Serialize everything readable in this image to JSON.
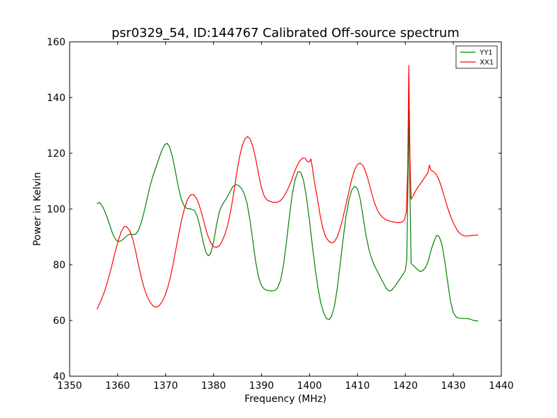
{
  "chart_data": {
    "type": "line",
    "title": "psr0329_54, ID:144767 Calibrated Off-source spectrum",
    "xlabel": "Frequency (MHz)",
    "ylabel": "Power in Kelvin",
    "xlim": [
      1350,
      1440
    ],
    "ylim": [
      40,
      160
    ],
    "x_ticks": [
      1350,
      1360,
      1370,
      1380,
      1390,
      1400,
      1410,
      1420,
      1430,
      1440
    ],
    "y_ticks": [
      40,
      60,
      80,
      100,
      120,
      140,
      160
    ],
    "grid": false,
    "legend_position": "top-right",
    "series": [
      {
        "name": "YY1",
        "color": "#008000",
        "points": [
          [
            1355.7,
            102
          ],
          [
            1356.3,
            102.3
          ],
          [
            1357,
            100.5
          ],
          [
            1357.7,
            97.5
          ],
          [
            1358.4,
            94
          ],
          [
            1359,
            91
          ],
          [
            1359.6,
            89
          ],
          [
            1360.2,
            88.3
          ],
          [
            1360.8,
            88.6
          ],
          [
            1361.4,
            89.5
          ],
          [
            1362,
            90.5
          ],
          [
            1362.6,
            91
          ],
          [
            1363.2,
            90.8
          ],
          [
            1363.8,
            91
          ],
          [
            1364.4,
            92.5
          ],
          [
            1365,
            95.5
          ],
          [
            1365.6,
            99.5
          ],
          [
            1366.2,
            104
          ],
          [
            1366.8,
            108.5
          ],
          [
            1367.4,
            112
          ],
          [
            1368,
            115
          ],
          [
            1368.6,
            118
          ],
          [
            1369.2,
            121
          ],
          [
            1369.8,
            123
          ],
          [
            1370.3,
            123.6
          ],
          [
            1370.8,
            122.5
          ],
          [
            1371.4,
            119
          ],
          [
            1372,
            114
          ],
          [
            1372.6,
            108.5
          ],
          [
            1373.2,
            104
          ],
          [
            1373.8,
            101.3
          ],
          [
            1374.4,
            100.2
          ],
          [
            1375.3,
            100
          ],
          [
            1376,
            99.5
          ],
          [
            1376.6,
            97.5
          ],
          [
            1377.2,
            93.5
          ],
          [
            1377.8,
            88.5
          ],
          [
            1378.4,
            84.5
          ],
          [
            1378.9,
            83.2
          ],
          [
            1379.4,
            84
          ],
          [
            1380,
            88
          ],
          [
            1380.6,
            94
          ],
          [
            1381.2,
            99
          ],
          [
            1381.8,
            101.5
          ],
          [
            1382.6,
            103.5
          ],
          [
            1383.4,
            106
          ],
          [
            1384,
            108
          ],
          [
            1384.6,
            108.7
          ],
          [
            1385.2,
            108.5
          ],
          [
            1385.8,
            107.5
          ],
          [
            1386.4,
            105.5
          ],
          [
            1387,
            102
          ],
          [
            1387.6,
            96
          ],
          [
            1388.2,
            88.5
          ],
          [
            1388.8,
            81
          ],
          [
            1389.4,
            75.5
          ],
          [
            1390,
            72.5
          ],
          [
            1390.6,
            71.2
          ],
          [
            1391.3,
            70.8
          ],
          [
            1392,
            70.6
          ],
          [
            1392.7,
            70.7
          ],
          [
            1393.3,
            71.5
          ],
          [
            1394,
            74.5
          ],
          [
            1394.6,
            80
          ],
          [
            1395.2,
            88
          ],
          [
            1395.8,
            97
          ],
          [
            1396.4,
            105
          ],
          [
            1397,
            110.5
          ],
          [
            1397.6,
            113.4
          ],
          [
            1398.2,
            113.2
          ],
          [
            1398.8,
            110
          ],
          [
            1399.4,
            104
          ],
          [
            1400,
            96
          ],
          [
            1400.6,
            87
          ],
          [
            1401.2,
            78.5
          ],
          [
            1401.8,
            71.5
          ],
          [
            1402.4,
            66
          ],
          [
            1403,
            62.5
          ],
          [
            1403.6,
            60.6
          ],
          [
            1404.1,
            60.3
          ],
          [
            1404.6,
            61.5
          ],
          [
            1405.2,
            65
          ],
          [
            1405.8,
            71.5
          ],
          [
            1406.4,
            80
          ],
          [
            1407,
            89
          ],
          [
            1407.6,
            97
          ],
          [
            1408.2,
            103
          ],
          [
            1408.8,
            106.7
          ],
          [
            1409.4,
            108.2
          ],
          [
            1410,
            107.3
          ],
          [
            1410.6,
            103.5
          ],
          [
            1411.2,
            97
          ],
          [
            1411.8,
            90.5
          ],
          [
            1412.4,
            85.5
          ],
          [
            1413,
            82
          ],
          [
            1413.6,
            79.5
          ],
          [
            1414.2,
            77.5
          ],
          [
            1414.8,
            75.5
          ],
          [
            1415.4,
            73.5
          ],
          [
            1416,
            71.5
          ],
          [
            1416.6,
            70.6
          ],
          [
            1417.1,
            70.8
          ],
          [
            1417.7,
            72
          ],
          [
            1418.3,
            73.5
          ],
          [
            1418.9,
            75
          ],
          [
            1419.5,
            76.5
          ],
          [
            1420,
            78
          ],
          [
            1420.3,
            82
          ],
          [
            1420.55,
            110
          ],
          [
            1420.75,
            135.5
          ],
          [
            1420.95,
            106
          ],
          [
            1421.2,
            80.5
          ],
          [
            1421.8,
            79.5
          ],
          [
            1422.4,
            78.5
          ],
          [
            1423,
            77.6
          ],
          [
            1423.6,
            77.8
          ],
          [
            1424.2,
            79
          ],
          [
            1424.8,
            81.5
          ],
          [
            1425.4,
            85.5
          ],
          [
            1426,
            88.5
          ],
          [
            1426.5,
            90.5
          ],
          [
            1427,
            90.3
          ],
          [
            1427.6,
            87.5
          ],
          [
            1428.2,
            81.5
          ],
          [
            1428.8,
            74
          ],
          [
            1429.4,
            67
          ],
          [
            1430,
            62.8
          ],
          [
            1430.6,
            61.2
          ],
          [
            1431.2,
            60.8
          ],
          [
            1432,
            60.7
          ],
          [
            1432.8,
            60.7
          ],
          [
            1433.5,
            60.5
          ],
          [
            1434.2,
            60
          ],
          [
            1435.2,
            59.8
          ]
        ]
      },
      {
        "name": "XX1",
        "color": "#ff0000",
        "points": [
          [
            1355.7,
            64
          ],
          [
            1356.5,
            67
          ],
          [
            1357.3,
            70.5
          ],
          [
            1358,
            74.5
          ],
          [
            1358.7,
            79
          ],
          [
            1359.4,
            84
          ],
          [
            1360.1,
            88.5
          ],
          [
            1360.8,
            92
          ],
          [
            1361.4,
            93.8
          ],
          [
            1362,
            93.5
          ],
          [
            1362.6,
            92
          ],
          [
            1363.2,
            89
          ],
          [
            1363.8,
            84.5
          ],
          [
            1364.4,
            79.5
          ],
          [
            1365,
            75
          ],
          [
            1365.6,
            71.3
          ],
          [
            1366.2,
            68.5
          ],
          [
            1366.8,
            66.5
          ],
          [
            1367.4,
            65.2
          ],
          [
            1368,
            64.7
          ],
          [
            1368.6,
            65.2
          ],
          [
            1369.2,
            66.5
          ],
          [
            1369.8,
            68.5
          ],
          [
            1370.4,
            71.5
          ],
          [
            1371,
            75.5
          ],
          [
            1371.6,
            80.5
          ],
          [
            1372.2,
            86
          ],
          [
            1372.8,
            91.5
          ],
          [
            1373.4,
            96.5
          ],
          [
            1374,
            100.5
          ],
          [
            1374.6,
            103.5
          ],
          [
            1375.2,
            105
          ],
          [
            1375.8,
            105.2
          ],
          [
            1376.4,
            104
          ],
          [
            1377,
            101.5
          ],
          [
            1377.6,
            98
          ],
          [
            1378.2,
            94
          ],
          [
            1378.8,
            90.5
          ],
          [
            1379.4,
            88
          ],
          [
            1380,
            86.5
          ],
          [
            1380.6,
            86.2
          ],
          [
            1381.2,
            86.8
          ],
          [
            1381.8,
            88.5
          ],
          [
            1382.4,
            91
          ],
          [
            1383,
            94.5
          ],
          [
            1383.6,
            99.5
          ],
          [
            1384.2,
            105.5
          ],
          [
            1384.8,
            112.5
          ],
          [
            1385.4,
            118.5
          ],
          [
            1386,
            122.8
          ],
          [
            1386.6,
            125.3
          ],
          [
            1387.1,
            126
          ],
          [
            1387.6,
            125.2
          ],
          [
            1388.2,
            122.5
          ],
          [
            1388.8,
            118
          ],
          [
            1389.4,
            112.5
          ],
          [
            1390,
            107.5
          ],
          [
            1390.6,
            104.5
          ],
          [
            1391.2,
            103.2
          ],
          [
            1391.8,
            102.7
          ],
          [
            1392.5,
            102.4
          ],
          [
            1393.2,
            102.4
          ],
          [
            1393.8,
            102.8
          ],
          [
            1394.4,
            103.8
          ],
          [
            1395,
            105.5
          ],
          [
            1395.6,
            107.5
          ],
          [
            1396.2,
            110
          ],
          [
            1396.8,
            113
          ],
          [
            1397.4,
            115.5
          ],
          [
            1398,
            117.3
          ],
          [
            1398.6,
            118.3
          ],
          [
            1399.1,
            118.2
          ],
          [
            1399.6,
            117
          ],
          [
            1400,
            116.9
          ],
          [
            1400.3,
            118
          ],
          [
            1400.6,
            115
          ],
          [
            1401,
            110
          ],
          [
            1401.6,
            104.5
          ],
          [
            1402.2,
            98
          ],
          [
            1402.8,
            93
          ],
          [
            1403.4,
            90
          ],
          [
            1404,
            88.5
          ],
          [
            1404.6,
            87.8
          ],
          [
            1405.2,
            88.3
          ],
          [
            1405.8,
            90
          ],
          [
            1406.4,
            93
          ],
          [
            1407,
            97
          ],
          [
            1407.6,
            101.5
          ],
          [
            1408.2,
            106
          ],
          [
            1408.8,
            110.5
          ],
          [
            1409.4,
            114
          ],
          [
            1410,
            116
          ],
          [
            1410.6,
            116.5
          ],
          [
            1411.2,
            115.5
          ],
          [
            1411.8,
            113
          ],
          [
            1412.4,
            109.5
          ],
          [
            1413,
            105.5
          ],
          [
            1413.6,
            102
          ],
          [
            1414.2,
            99.5
          ],
          [
            1414.8,
            97.8
          ],
          [
            1415.4,
            96.8
          ],
          [
            1416,
            96.1
          ],
          [
            1416.8,
            95.6
          ],
          [
            1417.6,
            95.3
          ],
          [
            1418.4,
            95.1
          ],
          [
            1419.2,
            95.2
          ],
          [
            1419.8,
            96
          ],
          [
            1420.2,
            99
          ],
          [
            1420.5,
            115
          ],
          [
            1420.72,
            151.5
          ],
          [
            1420.95,
            118
          ],
          [
            1421.2,
            103.5
          ],
          [
            1421.7,
            105
          ],
          [
            1422.3,
            107
          ],
          [
            1422.9,
            108.5
          ],
          [
            1423.5,
            110
          ],
          [
            1424.1,
            111.5
          ],
          [
            1424.7,
            113
          ],
          [
            1425,
            115.8
          ],
          [
            1425.3,
            114
          ],
          [
            1425.8,
            113.5
          ],
          [
            1426.4,
            112.5
          ],
          [
            1427,
            110.5
          ],
          [
            1427.6,
            107.5
          ],
          [
            1428.2,
            104
          ],
          [
            1428.8,
            100.5
          ],
          [
            1429.4,
            97.5
          ],
          [
            1430,
            95
          ],
          [
            1430.6,
            93
          ],
          [
            1431.2,
            91.5
          ],
          [
            1431.8,
            90.7
          ],
          [
            1432.4,
            90.3
          ],
          [
            1433,
            90.3
          ],
          [
            1433.8,
            90.5
          ],
          [
            1434.6,
            90.6
          ],
          [
            1435.2,
            90.7
          ]
        ]
      }
    ]
  }
}
